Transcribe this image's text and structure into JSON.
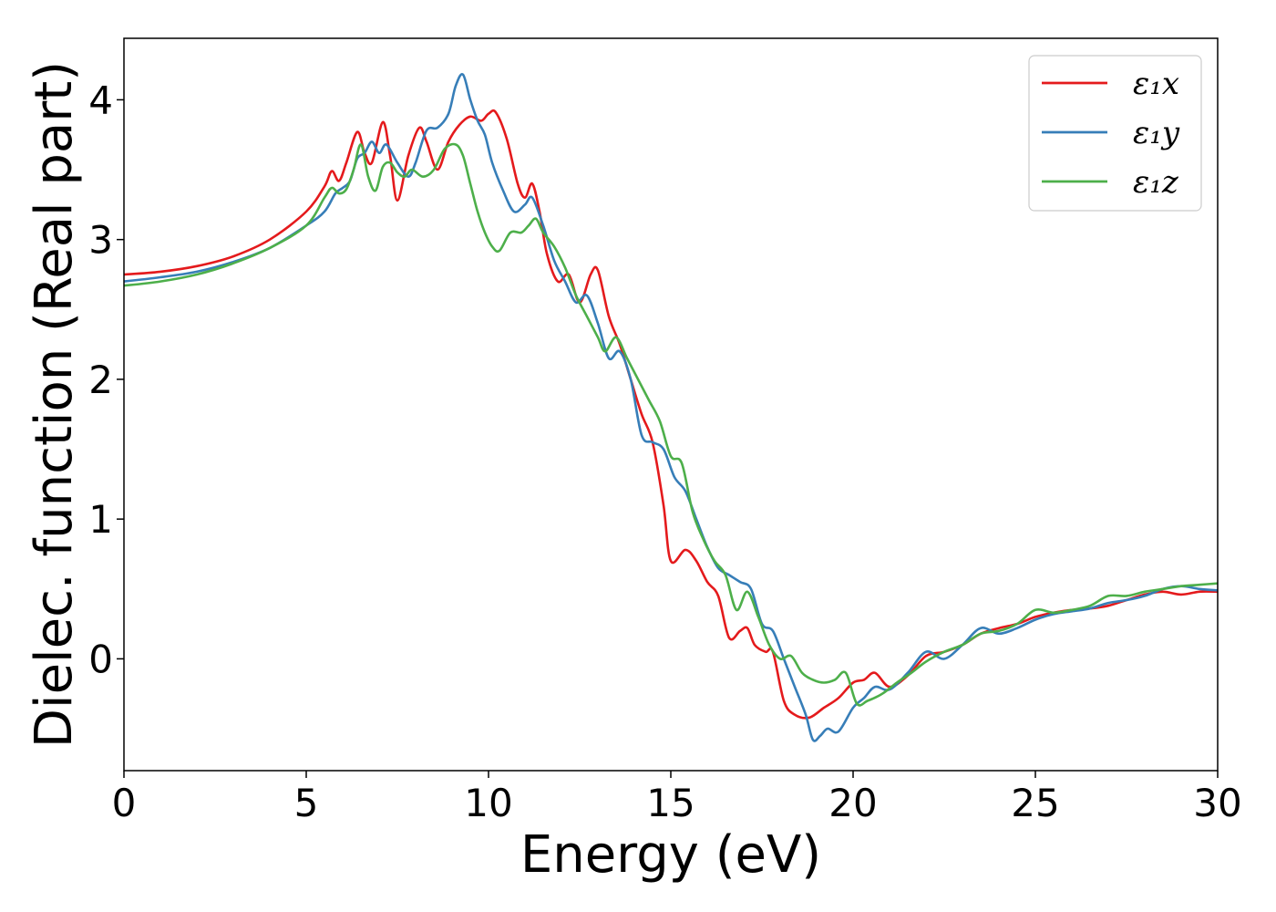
{
  "chart_data": {
    "type": "line",
    "xlabel": "Energy (eV)",
    "ylabel": "Dielec. function (Real part)",
    "xlim": [
      0,
      30
    ],
    "ylim": [
      -0.8,
      4.44
    ],
    "xticks": [
      0,
      5,
      10,
      15,
      20,
      25,
      30
    ],
    "yticks": [
      0,
      1,
      2,
      3,
      4
    ],
    "grid": false,
    "legend_position": "upper-right",
    "series": [
      {
        "name": "ε₁x",
        "color": "#e41a1c",
        "x": [
          0,
          1,
          2,
          3,
          4,
          5,
          5.5,
          5.7,
          5.9,
          6.1,
          6.4,
          6.6,
          6.8,
          7.1,
          7.3,
          7.5,
          7.8,
          8.1,
          8.3,
          8.6,
          8.9,
          9.2,
          9.5,
          9.8,
          10.0,
          10.2,
          10.5,
          10.8,
          11.0,
          11.2,
          11.4,
          11.6,
          11.9,
          12.2,
          12.5,
          12.8,
          13.0,
          13.3,
          13.6,
          13.9,
          14.2,
          14.5,
          14.8,
          15.0,
          15.4,
          15.7,
          16.0,
          16.3,
          16.6,
          16.9,
          17.1,
          17.3,
          17.6,
          17.8,
          18.1,
          18.4,
          18.8,
          19.2,
          19.6,
          20.0,
          20.3,
          20.6,
          21.0,
          21.5,
          22.0,
          22.5,
          23.0,
          23.5,
          24.0,
          24.5,
          25.0,
          25.5,
          26.0,
          26.5,
          27.0,
          27.5,
          28.0,
          28.5,
          29.0,
          29.5,
          30.0
        ],
        "y": [
          2.75,
          2.77,
          2.81,
          2.88,
          3.0,
          3.2,
          3.38,
          3.49,
          3.42,
          3.55,
          3.77,
          3.62,
          3.55,
          3.84,
          3.6,
          3.28,
          3.6,
          3.8,
          3.7,
          3.5,
          3.7,
          3.82,
          3.88,
          3.85,
          3.9,
          3.91,
          3.72,
          3.4,
          3.3,
          3.4,
          3.2,
          2.9,
          2.7,
          2.75,
          2.55,
          2.75,
          2.78,
          2.45,
          2.25,
          2.0,
          1.75,
          1.55,
          1.1,
          0.7,
          0.78,
          0.7,
          0.55,
          0.45,
          0.15,
          0.2,
          0.22,
          0.1,
          0.05,
          0.05,
          -0.3,
          -0.4,
          -0.42,
          -0.35,
          -0.28,
          -0.17,
          -0.15,
          -0.1,
          -0.2,
          -0.12,
          0.02,
          0.05,
          0.1,
          0.18,
          0.22,
          0.25,
          0.3,
          0.33,
          0.35,
          0.36,
          0.38,
          0.42,
          0.46,
          0.48,
          0.46,
          0.48,
          0.48
        ]
      },
      {
        "name": "ε₁y",
        "color": "#377eb8",
        "x": [
          0,
          1,
          2,
          3,
          4,
          5,
          5.5,
          5.8,
          6.0,
          6.2,
          6.4,
          6.6,
          6.8,
          7.0,
          7.2,
          7.5,
          7.8,
          8.0,
          8.3,
          8.6,
          8.9,
          9.1,
          9.3,
          9.5,
          9.7,
          9.9,
          10.1,
          10.4,
          10.7,
          11.0,
          11.2,
          11.5,
          11.8,
          12.1,
          12.4,
          12.7,
          13.0,
          13.3,
          13.6,
          13.9,
          14.2,
          14.5,
          14.8,
          15.1,
          15.4,
          15.7,
          16.0,
          16.3,
          16.6,
          16.9,
          17.2,
          17.5,
          17.8,
          18.1,
          18.4,
          18.7,
          18.9,
          19.1,
          19.3,
          19.6,
          20.0,
          20.3,
          20.6,
          21.0,
          21.5,
          22.0,
          22.5,
          23.0,
          23.5,
          24.0,
          24.5,
          25.0,
          25.5,
          26.0,
          26.5,
          27.0,
          27.5,
          28.0,
          28.5,
          29.0,
          29.5,
          30.0
        ],
        "y": [
          2.7,
          2.73,
          2.77,
          2.84,
          2.94,
          3.1,
          3.2,
          3.33,
          3.37,
          3.42,
          3.58,
          3.62,
          3.7,
          3.62,
          3.68,
          3.55,
          3.45,
          3.55,
          3.78,
          3.8,
          3.9,
          4.1,
          4.18,
          4.0,
          3.85,
          3.75,
          3.55,
          3.35,
          3.2,
          3.25,
          3.3,
          3.1,
          2.85,
          2.7,
          2.55,
          2.6,
          2.4,
          2.15,
          2.2,
          2.0,
          1.6,
          1.55,
          1.5,
          1.3,
          1.2,
          1.0,
          0.8,
          0.65,
          0.6,
          0.55,
          0.5,
          0.25,
          0.2,
          0.0,
          -0.2,
          -0.4,
          -0.58,
          -0.55,
          -0.5,
          -0.52,
          -0.35,
          -0.28,
          -0.2,
          -0.22,
          -0.1,
          0.05,
          0.0,
          0.1,
          0.22,
          0.18,
          0.22,
          0.28,
          0.32,
          0.34,
          0.36,
          0.4,
          0.42,
          0.45,
          0.5,
          0.52,
          0.5,
          0.49
        ]
      },
      {
        "name": "ε₁z",
        "color": "#4daf4a",
        "x": [
          0,
          1,
          2,
          3,
          4,
          5,
          5.5,
          5.7,
          5.9,
          6.1,
          6.3,
          6.5,
          6.7,
          6.9,
          7.1,
          7.3,
          7.5,
          7.7,
          7.9,
          8.2,
          8.5,
          8.8,
          9.1,
          9.3,
          9.5,
          9.7,
          9.9,
          10.1,
          10.3,
          10.6,
          10.9,
          11.1,
          11.3,
          11.5,
          11.8,
          12.1,
          12.4,
          12.7,
          13.0,
          13.2,
          13.5,
          13.8,
          14.1,
          14.4,
          14.7,
          15.0,
          15.3,
          15.6,
          15.9,
          16.2,
          16.5,
          16.8,
          17.1,
          17.4,
          17.7,
          18.0,
          18.3,
          18.6,
          18.9,
          19.2,
          19.5,
          19.8,
          20.1,
          20.4,
          20.8,
          21.2,
          21.6,
          22.0,
          22.5,
          23.0,
          23.5,
          24.0,
          24.5,
          25.0,
          25.5,
          26.0,
          26.5,
          27.0,
          27.5,
          28.0,
          28.5,
          29.0,
          29.5,
          30.0
        ],
        "y": [
          2.67,
          2.7,
          2.75,
          2.83,
          2.94,
          3.1,
          3.3,
          3.37,
          3.33,
          3.36,
          3.5,
          3.68,
          3.45,
          3.35,
          3.52,
          3.55,
          3.48,
          3.45,
          3.5,
          3.45,
          3.5,
          3.65,
          3.68,
          3.6,
          3.4,
          3.2,
          3.05,
          2.95,
          2.92,
          3.05,
          3.05,
          3.1,
          3.15,
          3.05,
          2.95,
          2.8,
          2.6,
          2.45,
          2.3,
          2.2,
          2.3,
          2.15,
          2.0,
          1.85,
          1.7,
          1.45,
          1.4,
          1.05,
          0.85,
          0.7,
          0.6,
          0.35,
          0.48,
          0.3,
          0.1,
          0.0,
          0.02,
          -0.1,
          -0.15,
          -0.17,
          -0.15,
          -0.1,
          -0.32,
          -0.3,
          -0.25,
          -0.17,
          -0.1,
          -0.02,
          0.05,
          0.1,
          0.18,
          0.2,
          0.25,
          0.35,
          0.33,
          0.35,
          0.38,
          0.45,
          0.45,
          0.48,
          0.5,
          0.52,
          0.53,
          0.54
        ]
      }
    ]
  }
}
